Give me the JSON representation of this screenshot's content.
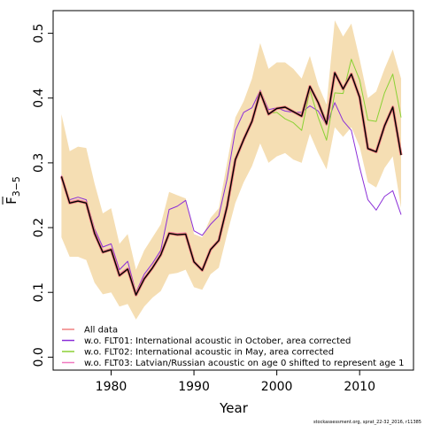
{
  "chart_data": {
    "type": "line",
    "xlabel": "Year",
    "ylabel_main": "F",
    "ylabel_sub": "3−5",
    "x_ticks": [
      1980,
      1990,
      2000,
      2010
    ],
    "y_ticks": [
      "0.0",
      "0.1",
      "0.2",
      "0.3",
      "0.4",
      "0.5"
    ],
    "xlim": [
      1973,
      2016.5
    ],
    "ylim": [
      -0.02,
      0.535
    ],
    "grid": false,
    "legend_position": "bottom-left",
    "footer": "stockassessment.org, sprat_22-32_2016, r11385",
    "x": [
      1974,
      1975,
      1976,
      1977,
      1978,
      1979,
      1980,
      1981,
      1982,
      1983,
      1984,
      1985,
      1986,
      1987,
      1988,
      1989,
      1990,
      1991,
      1992,
      1993,
      1994,
      1995,
      1996,
      1997,
      1998,
      1999,
      2000,
      2001,
      2002,
      2003,
      2004,
      2005,
      2006,
      2007,
      2008,
      2009,
      2010,
      2011,
      2012,
      2013,
      2014,
      2015
    ],
    "band": {
      "name": "confidence interval",
      "color": "#f5deb3",
      "upper": [
        0.375,
        0.318,
        0.325,
        0.323,
        0.268,
        0.222,
        0.23,
        0.175,
        0.19,
        0.135,
        0.165,
        0.185,
        0.205,
        0.255,
        0.25,
        0.245,
        0.19,
        0.185,
        0.215,
        0.23,
        0.3,
        0.37,
        0.395,
        0.43,
        0.485,
        0.445,
        0.455,
        0.455,
        0.445,
        0.43,
        0.465,
        0.42,
        0.39,
        0.52,
        0.495,
        0.515,
        0.46,
        0.4,
        0.41,
        0.445,
        0.475,
        0.43
      ],
      "lower": [
        0.185,
        0.155,
        0.155,
        0.15,
        0.115,
        0.097,
        0.1,
        0.078,
        0.082,
        0.058,
        0.078,
        0.092,
        0.102,
        0.128,
        0.13,
        0.135,
        0.108,
        0.104,
        0.128,
        0.138,
        0.19,
        0.238,
        0.27,
        0.295,
        0.33,
        0.3,
        0.31,
        0.315,
        0.305,
        0.3,
        0.345,
        0.315,
        0.29,
        0.355,
        0.34,
        0.355,
        0.325,
        0.27,
        0.262,
        0.292,
        0.31,
        0.23
      ]
    },
    "series": [
      {
        "name": "w.o. FLT01:      International acoustic in October, area corrected",
        "color": "#8b2fd8",
        "values": [
          0.275,
          0.243,
          0.247,
          0.243,
          0.198,
          0.17,
          0.175,
          0.135,
          0.148,
          0.1,
          0.128,
          0.145,
          0.165,
          0.228,
          0.233,
          0.242,
          0.195,
          0.188,
          0.205,
          0.218,
          0.275,
          0.35,
          0.378,
          0.385,
          0.412,
          0.382,
          0.385,
          0.38,
          0.378,
          0.378,
          0.388,
          0.38,
          0.358,
          0.393,
          0.365,
          0.35,
          0.293,
          0.243,
          0.227,
          0.248,
          0.257,
          0.22
        ]
      },
      {
        "name": "w.o. FLT02: International acoustic in May, area corrected",
        "color": "#8ad134",
        "values": [
          0.277,
          0.237,
          0.24,
          0.237,
          0.19,
          0.163,
          0.166,
          0.127,
          0.137,
          0.095,
          0.12,
          0.137,
          0.158,
          0.192,
          0.188,
          0.19,
          0.148,
          0.134,
          0.167,
          0.18,
          0.232,
          0.305,
          0.336,
          0.365,
          0.408,
          0.376,
          0.378,
          0.368,
          0.362,
          0.35,
          0.412,
          0.37,
          0.335,
          0.408,
          0.407,
          0.46,
          0.428,
          0.366,
          0.364,
          0.408,
          0.437,
          0.37
        ]
      },
      {
        "name": "w.o. FLT03: Latvian/Russian acoustic on age 0 shifted to represent age 1",
        "color": "#f07ac0",
        "values": [
          0.281,
          0.24,
          0.243,
          0.24,
          0.193,
          0.164,
          0.168,
          0.129,
          0.138,
          0.098,
          0.123,
          0.14,
          0.16,
          0.193,
          0.191,
          0.192,
          0.149,
          0.136,
          0.168,
          0.182,
          0.235,
          0.307,
          0.338,
          0.366,
          0.411,
          0.377,
          0.385,
          0.387,
          0.38,
          0.373,
          0.419,
          0.395,
          0.362,
          0.441,
          0.415,
          0.438,
          0.403,
          0.324,
          0.318,
          0.359,
          0.388,
          0.314
        ]
      },
      {
        "name": "All data",
        "color": "#f08080",
        "values": [
          0.279,
          0.238,
          0.241,
          0.238,
          0.191,
          0.162,
          0.166,
          0.126,
          0.136,
          0.096,
          0.121,
          0.138,
          0.158,
          0.191,
          0.189,
          0.19,
          0.147,
          0.134,
          0.166,
          0.18,
          0.233,
          0.305,
          0.336,
          0.364,
          0.409,
          0.375,
          0.384,
          0.386,
          0.379,
          0.372,
          0.418,
          0.393,
          0.36,
          0.439,
          0.414,
          0.437,
          0.401,
          0.322,
          0.317,
          0.357,
          0.386,
          0.312
        ]
      },
      {
        "name": "",
        "color": "#000000",
        "values": [
          0.279,
          0.238,
          0.241,
          0.238,
          0.191,
          0.162,
          0.166,
          0.126,
          0.136,
          0.096,
          0.121,
          0.138,
          0.158,
          0.191,
          0.189,
          0.19,
          0.147,
          0.134,
          0.166,
          0.18,
          0.233,
          0.305,
          0.336,
          0.364,
          0.409,
          0.375,
          0.384,
          0.386,
          0.379,
          0.372,
          0.418,
          0.393,
          0.36,
          0.439,
          0.414,
          0.437,
          0.401,
          0.322,
          0.317,
          0.357,
          0.386,
          0.312
        ]
      }
    ],
    "legend": [
      {
        "label": "All data",
        "color": "#f08080"
      },
      {
        "label": "w.o. FLT01:      International acoustic in October, area corrected",
        "color": "#8b2fd8"
      },
      {
        "label": "w.o. FLT02: International acoustic in May, area corrected",
        "color": "#8ad134"
      },
      {
        "label": "w.o. FLT03: Latvian/Russian acoustic on age 0 shifted to represent age 1",
        "color": "#f07ac0"
      }
    ]
  }
}
